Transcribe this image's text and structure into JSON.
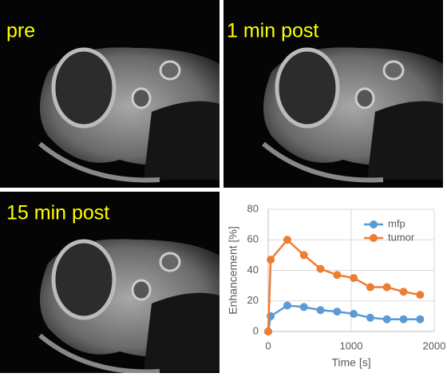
{
  "panels": [
    {
      "label": "pre"
    },
    {
      "label": "1 min post"
    },
    {
      "label": "15 min post"
    }
  ],
  "chart_data": {
    "type": "line",
    "x": [
      0,
      30,
      230,
      430,
      630,
      830,
      1030,
      1230,
      1430,
      1630,
      1830
    ],
    "series": [
      {
        "name": "mfp",
        "color": "#5b9bd5",
        "values": [
          0,
          10,
          17,
          16,
          14,
          13,
          11.5,
          9,
          8,
          8,
          8
        ]
      },
      {
        "name": "tumor",
        "color": "#ed7d31",
        "values": [
          0,
          47,
          60,
          50,
          41,
          37,
          35,
          29,
          29,
          26,
          24
        ]
      }
    ],
    "xlabel": "Time [s]",
    "ylabel": "Enhancement [%]",
    "xlim": [
      0,
      2000
    ],
    "xticks": [
      0,
      1000,
      2000
    ],
    "ylim": [
      0,
      80
    ],
    "yticks": [
      0,
      20,
      40,
      60,
      80
    ],
    "grid": true,
    "legend": "upper right"
  }
}
